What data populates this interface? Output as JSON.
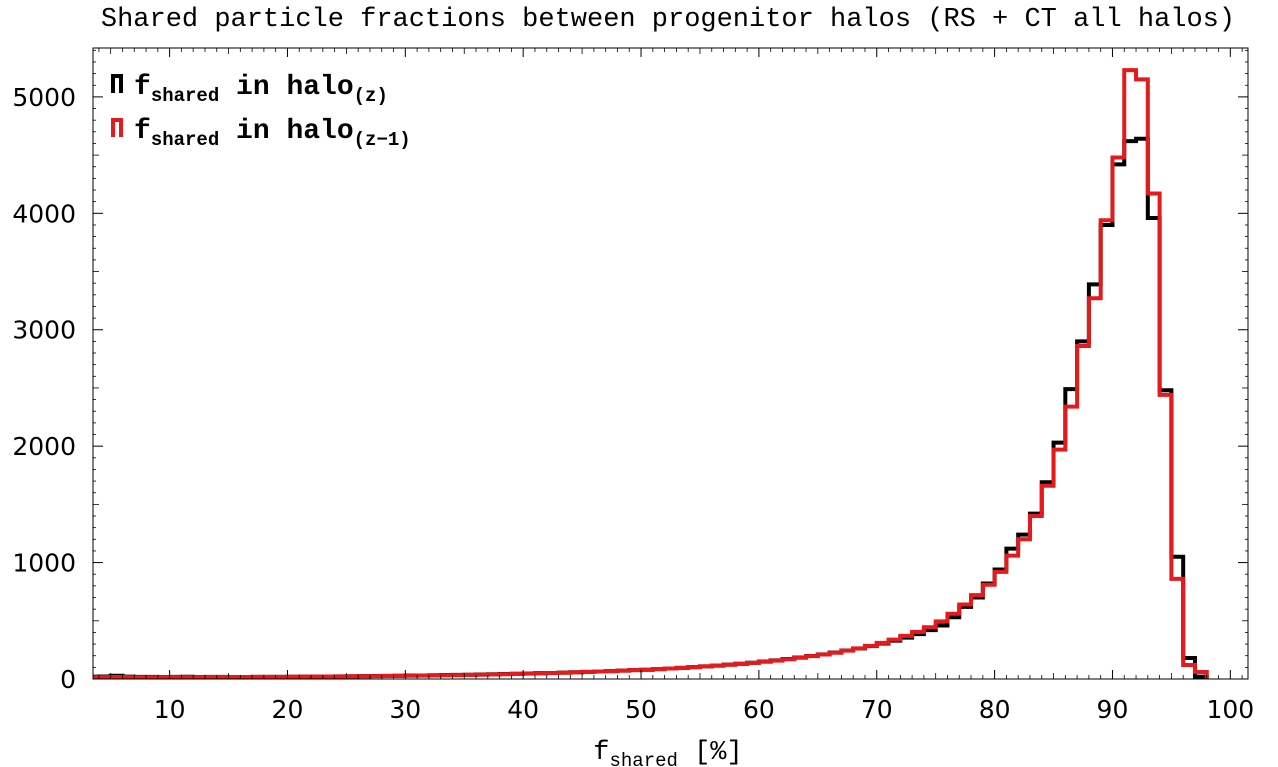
{
  "chart_data": {
    "type": "histogram",
    "title": "Shared particle fractions between progenitor halos (RS + CT all halos)",
    "xlabel": {
      "main": "f",
      "sub": "shared",
      "unit": " [%]"
    },
    "ylabel": "",
    "xlim": [
      3.5,
      101.5
    ],
    "ylim": [
      0,
      5420
    ],
    "xticks": [
      10,
      20,
      30,
      40,
      50,
      60,
      70,
      80,
      90,
      100
    ],
    "yticks": [
      0,
      1000,
      2000,
      3000,
      4000,
      5000
    ],
    "bin_start": 3,
    "bin_width": 1,
    "grid": false,
    "legend_position": "top-left",
    "series": [
      {
        "name": "f_shared in halo_(z)",
        "legend": {
          "f": "f",
          "sub": "shared",
          "mid": " in halo",
          "halo_sub": "(z)"
        },
        "color": "#000000",
        "values": [
          20,
          22,
          28,
          20,
          18,
          18,
          17,
          18,
          19,
          17,
          18,
          18,
          17,
          17,
          18,
          18,
          18,
          19,
          20,
          21,
          22,
          23,
          24,
          25,
          26,
          27,
          28,
          30,
          30,
          32,
          34,
          35,
          37,
          39,
          41,
          43,
          45,
          47,
          50,
          52,
          55,
          58,
          61,
          64,
          68,
          72,
          76,
          80,
          85,
          90,
          96,
          102,
          108,
          115,
          123,
          131,
          140,
          150,
          160,
          172,
          185,
          198,
          212,
          228,
          245,
          262,
          282,
          305,
          330,
          355,
          385,
          420,
          460,
          530,
          620,
          700,
          820,
          940,
          1120,
          1240,
          1420,
          1690,
          2030,
          2490,
          2900,
          3390,
          3900,
          4420,
          4620,
          4640,
          3960,
          2480,
          1050,
          180,
          20
        ]
      },
      {
        "name": "f_shared in halo_(z-1)",
        "legend": {
          "f": "f",
          "sub": "shared",
          "mid": " in halo",
          "halo_sub": "(z−1)"
        },
        "color": "#e41a1c",
        "values": [
          15,
          16,
          17,
          16,
          15,
          15,
          16,
          16,
          16,
          16,
          17,
          17,
          17,
          17,
          18,
          18,
          18,
          19,
          20,
          21,
          21,
          22,
          23,
          24,
          25,
          26,
          27,
          28,
          29,
          30,
          32,
          33,
          35,
          37,
          39,
          41,
          43,
          46,
          48,
          51,
          54,
          57,
          60,
          64,
          68,
          72,
          76,
          80,
          85,
          90,
          96,
          102,
          108,
          115,
          122,
          130,
          139,
          148,
          158,
          170,
          182,
          196,
          210,
          226,
          244,
          263,
          285,
          310,
          338,
          370,
          405,
          445,
          495,
          560,
          640,
          720,
          810,
          920,
          1060,
          1200,
          1400,
          1660,
          1970,
          2340,
          2860,
          3270,
          3940,
          4480,
          5230,
          5150,
          4170,
          2440,
          860,
          120,
          60
        ]
      }
    ]
  }
}
